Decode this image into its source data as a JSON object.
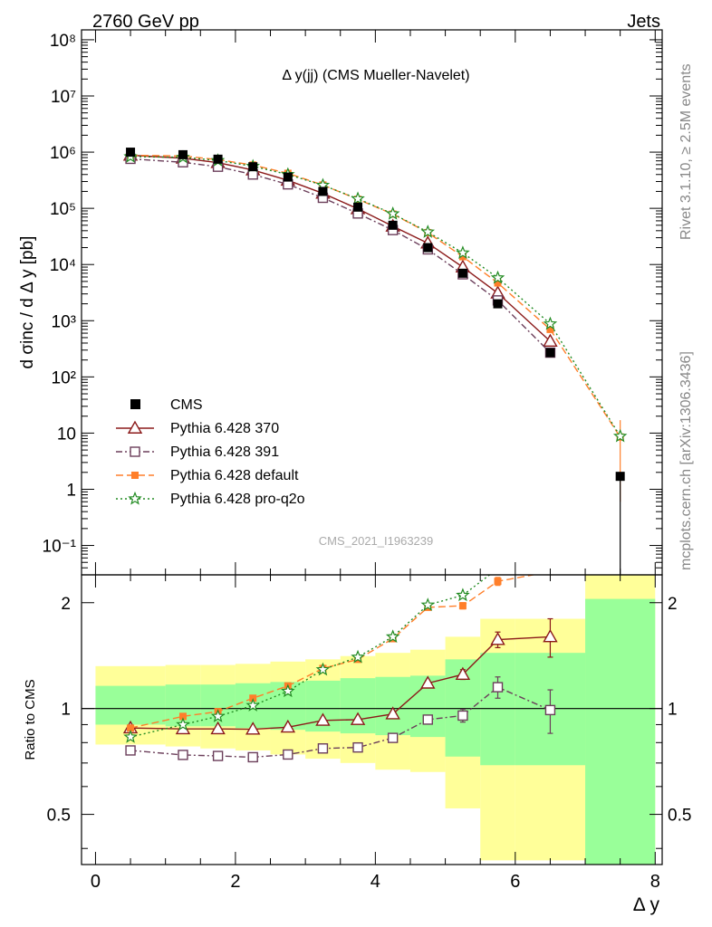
{
  "header": {
    "left": "2760 GeV pp",
    "right": "Jets"
  },
  "side_text": {
    "rivet": "Rivet 3.1.10, ≥ 2.5M events",
    "mcplots": "mcplots.cern.ch [arXiv:1306.3436]"
  },
  "chart_data": {
    "type": "line",
    "title": "Δ y(jj) (CMS Mueller-Navelet)",
    "watermark": "CMS_2021_I1963239",
    "xlabel": "Δ y",
    "ylabel": "d σinc / d Δ y [pb]",
    "ratio_ylabel": "Ratio to CMS",
    "xlim": [
      -0.2,
      8.1
    ],
    "ylim": [
      0.03,
      150000000
    ],
    "yscale": "log",
    "ratio_ylim": [
      0.36,
      2.4
    ],
    "ratio_yscale": "log",
    "x_ticks": [
      "0",
      "2",
      "4",
      "6",
      "8"
    ],
    "y_ticks": [
      "10⁻¹",
      "1",
      "10",
      "10²",
      "10³",
      "10⁴",
      "10⁵",
      "10⁶",
      "10⁷",
      "10⁸"
    ],
    "ratio_ticks": [
      "0.5",
      "1",
      "2"
    ],
    "x": [
      0.5,
      1.25,
      1.75,
      2.25,
      2.75,
      3.25,
      3.75,
      4.25,
      4.75,
      5.25,
      5.75,
      6.5,
      7.5
    ],
    "data": {
      "name": "CMS",
      "values": [
        1000000,
        900000,
        750000,
        550000,
        360000,
        200000,
        105000,
        50000,
        20000,
        7000,
        2000,
        270,
        1.7
      ],
      "bins": [
        [
          0,
          1
        ],
        [
          1,
          1.5
        ],
        [
          1.5,
          2
        ],
        [
          2,
          2.5
        ],
        [
          2.5,
          3
        ],
        [
          3,
          3.5
        ],
        [
          3.5,
          4
        ],
        [
          4,
          4.5
        ],
        [
          4.5,
          5
        ],
        [
          5,
          5.5
        ],
        [
          5.5,
          6
        ],
        [
          6,
          7
        ],
        [
          7,
          8
        ]
      ]
    },
    "bands": {
      "inner_lo": [
        0.9,
        0.89,
        0.89,
        0.88,
        0.87,
        0.86,
        0.85,
        0.84,
        0.83,
        0.73,
        0.69,
        0.69,
        0.36
      ],
      "inner_hi": [
        1.16,
        1.17,
        1.17,
        1.18,
        1.19,
        1.2,
        1.22,
        1.23,
        1.24,
        1.38,
        1.44,
        1.44,
        2.05
      ],
      "outer_lo": [
        0.79,
        0.78,
        0.77,
        0.76,
        0.74,
        0.72,
        0.7,
        0.67,
        0.66,
        0.52,
        0.37,
        0.37,
        0.36
      ],
      "outer_hi": [
        1.32,
        1.33,
        1.33,
        1.34,
        1.36,
        1.38,
        1.41,
        1.44,
        1.47,
        1.6,
        1.8,
        1.8,
        2.4
      ]
    },
    "series": [
      {
        "name": "Pythia 6.428 370",
        "color": "#8b1a1a",
        "marker": "open-triangle",
        "dash": "",
        "values": [
          880000,
          780000,
          650000,
          480000,
          315000,
          185000,
          98000,
          48000,
          24000,
          9000,
          3100,
          430,
          null
        ],
        "ratio": [
          0.88,
          0.875,
          0.875,
          0.873,
          0.885,
          0.925,
          0.93,
          0.965,
          1.18,
          1.25,
          1.57,
          1.6,
          null
        ],
        "ratio_err": [
          0,
          0,
          0,
          0,
          0,
          0,
          0,
          0,
          0.02,
          0.04,
          0.08,
          0.2,
          null
        ]
      },
      {
        "name": "Pythia 6.428 391",
        "color": "#6b3e5a",
        "marker": "open-square",
        "dash": "7,3,2,3",
        "values": [
          760000,
          660000,
          550000,
          400000,
          267000,
          154000,
          81000,
          41000,
          18600,
          6700,
          2300,
          270,
          null
        ],
        "ratio": [
          0.76,
          0.738,
          0.733,
          0.727,
          0.74,
          0.77,
          0.775,
          0.825,
          0.93,
          0.955,
          1.15,
          0.99,
          null
        ],
        "ratio_err": [
          0,
          0,
          0,
          0,
          0,
          0,
          0,
          0,
          0.02,
          0.04,
          0.08,
          0.14,
          null
        ]
      },
      {
        "name": "Pythia 6.428 default",
        "color": "#ff7f2a",
        "marker": "filled-square",
        "dash": "8,4",
        "values": [
          880000,
          855000,
          735000,
          590000,
          420000,
          260000,
          145000,
          79000,
          37000,
          13800,
          4700,
          700,
          8.5
        ],
        "ratio": [
          0.88,
          0.95,
          0.98,
          1.07,
          1.16,
          1.3,
          1.38,
          1.58,
          1.94,
          1.96,
          2.3,
          2.45,
          null
        ],
        "ratio_err": [
          0,
          0,
          0,
          0,
          0,
          0,
          0,
          0,
          0,
          0.04,
          0.06,
          0,
          null
        ],
        "last_err": [
          0.6,
          17
        ]
      },
      {
        "name": "Pythia 6.428 pro-q2o",
        "color": "#228b22",
        "marker": "open-star",
        "dash": "2,3",
        "values": [
          830000,
          810000,
          710000,
          560000,
          400000,
          258000,
          148000,
          80000,
          38000,
          16100,
          5800,
          880,
          8.8
        ],
        "ratio": [
          0.83,
          0.9,
          0.95,
          1.02,
          1.12,
          1.29,
          1.4,
          1.6,
          1.97,
          2.1,
          2.5,
          null,
          null
        ],
        "ratio_err": [
          0,
          0,
          0,
          0,
          0,
          0,
          0,
          0,
          0,
          0,
          0,
          null,
          null
        ]
      }
    ],
    "band_colors": {
      "inner": "#99ff99",
      "outer": "#ffff99"
    },
    "legend_placement": "bottom-left",
    "grid": false
  }
}
